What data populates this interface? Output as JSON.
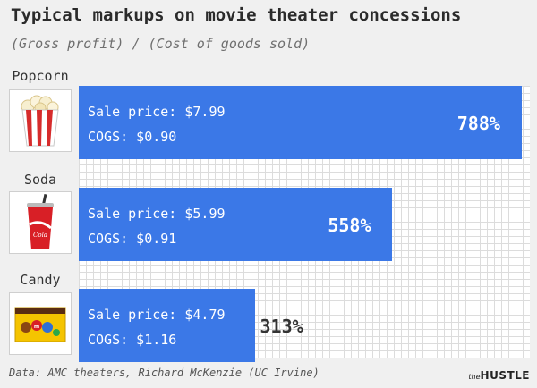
{
  "chart_data": {
    "type": "bar",
    "orientation": "horizontal",
    "title": "Typical markups on movie theater concessions",
    "subtitle": "(Gross profit) / (Cost of goods sold)",
    "categories": [
      "Popcorn",
      "Soda",
      "Candy"
    ],
    "values": [
      788,
      558,
      313
    ],
    "value_labels": [
      "788%",
      "558%",
      "313%"
    ],
    "sale_price_labels": [
      "Sale price: $7.99",
      "Sale price: $5.99",
      "Sale price: $4.79"
    ],
    "cogs_labels": [
      "COGS: $0.90",
      "COGS: $0.91",
      "COGS: $1.16"
    ],
    "sale_prices": [
      7.99,
      5.99,
      4.79
    ],
    "cogs": [
      0.9,
      0.91,
      1.16
    ],
    "icons": [
      "popcorn-icon",
      "soda-cup-icon",
      "candy-box-icon"
    ],
    "xlim": [
      0,
      790
    ],
    "grid": true,
    "bar_color": "#3b78e7",
    "source": "Data: AMC theaters, Richard McKenzie (UC Irvine)",
    "brand_small": "the",
    "brand": "HUSTLE"
  }
}
